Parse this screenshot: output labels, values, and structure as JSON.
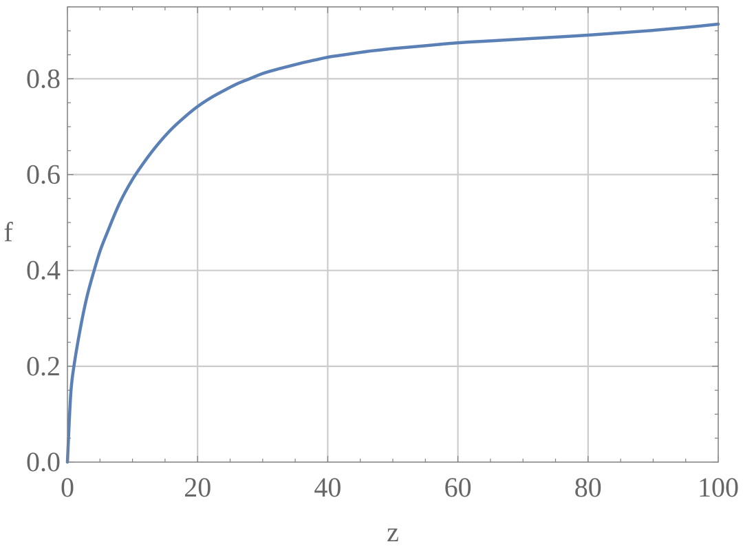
{
  "chart_data": {
    "type": "line",
    "title": "",
    "xlabel": "z",
    "ylabel": "f",
    "xlim": [
      0,
      100
    ],
    "ylim": [
      0,
      0.95
    ],
    "grid": true,
    "legend": "none",
    "xticks": [
      0,
      20,
      40,
      60,
      80,
      100
    ],
    "xtick_labels": [
      "0",
      "20",
      "40",
      "60",
      "80",
      "100"
    ],
    "yticks": [
      0,
      0.2,
      0.4,
      0.6,
      0.8
    ],
    "ytick_labels": [
      "0.0",
      "0.2",
      "0.4",
      "0.6",
      "0.8"
    ],
    "series": [
      {
        "color": "#5b80b6",
        "x": [
          0,
          0.5,
          1,
          2,
          3,
          4,
          5,
          6,
          8,
          10,
          12,
          14,
          16,
          18,
          20,
          22,
          24,
          26,
          28,
          30,
          32,
          34,
          36,
          38,
          40,
          42,
          44,
          46,
          48,
          50,
          55,
          60,
          65,
          70,
          75,
          80,
          85,
          90,
          95,
          100
        ],
        "y": [
          0.0,
          0.14,
          0.2,
          0.28,
          0.345,
          0.395,
          0.44,
          0.475,
          0.54,
          0.59,
          0.63,
          0.665,
          0.695,
          0.72,
          0.742,
          0.76,
          0.775,
          0.789,
          0.8,
          0.811,
          0.819,
          0.826,
          0.833,
          0.839,
          0.845,
          0.849,
          0.853,
          0.857,
          0.86,
          0.863,
          0.869,
          0.875,
          0.879,
          0.883,
          0.887,
          0.891,
          0.896,
          0.901,
          0.907,
          0.914
        ]
      }
    ]
  },
  "colors": {
    "frame": "#7f7f7f",
    "grid": "#cccccc",
    "text": "#666666",
    "line": "#5b80b6"
  }
}
